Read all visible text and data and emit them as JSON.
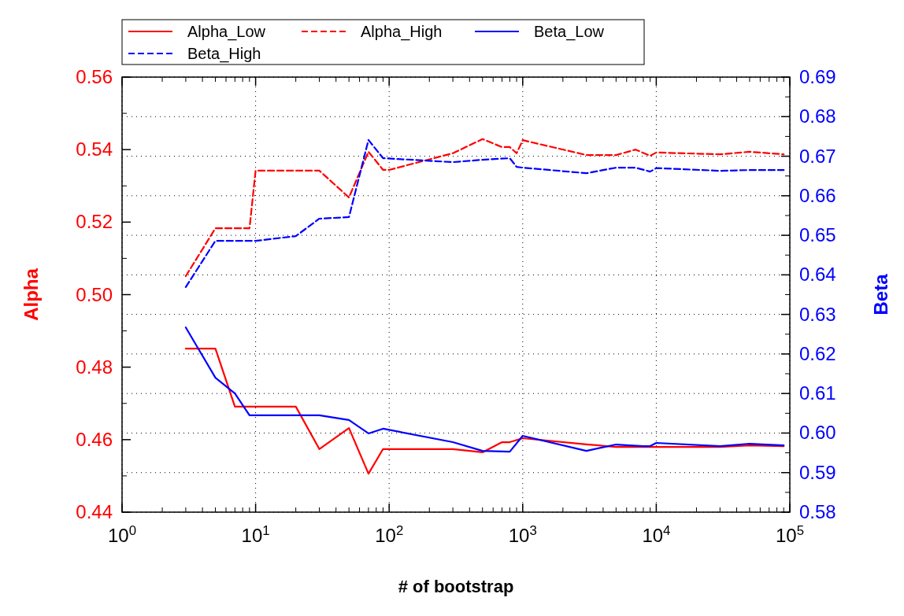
{
  "chart_data": {
    "type": "line",
    "xlabel": "# of bootstrap",
    "ylabel": "Alpha",
    "y2label": "Beta",
    "log": "x",
    "grid": true,
    "legend": "top left",
    "xlim": [
      1,
      100000
    ],
    "xticks": [
      {
        "value": 1,
        "label": "10$^{0}$"
      },
      {
        "value": 10,
        "label": "10$^{1}$"
      },
      {
        "value": 100,
        "label": "10$^{2}$"
      },
      {
        "value": 1000,
        "label": "10$^{3}$"
      },
      {
        "value": 10000,
        "label": "10$^{4}$"
      },
      {
        "value": 100000,
        "label": "10$^{5}$"
      }
    ],
    "ylim": [
      0.44,
      0.56
    ],
    "yticks": [
      {
        "value": 0.44,
        "label": "0.44"
      },
      {
        "value": 0.46,
        "label": "0.46"
      },
      {
        "value": 0.48,
        "label": "0.48"
      },
      {
        "value": 0.5,
        "label": "0.50"
      },
      {
        "value": 0.52,
        "label": "0.52"
      },
      {
        "value": 0.54,
        "label": "0.54"
      },
      {
        "value": 0.56,
        "label": "0.56"
      }
    ],
    "y2lim": [
      0.58,
      0.69
    ],
    "y2ticks": [
      0.58,
      0.59,
      {
        "value": 0.6,
        "label": "0.60"
      },
      0.61,
      0.62,
      0.63,
      0.64,
      0.65,
      0.66,
      0.67,
      0.68,
      0.69
    ],
    "series": [
      {
        "name": "Alpha_Low",
        "color": "#ff0000",
        "line_style": "solid",
        "x": [
          3,
          5,
          7,
          20,
          30,
          50,
          70,
          90,
          300,
          500,
          700,
          800,
          1000,
          3000,
          5000,
          10000,
          30000,
          50000,
          90000
        ],
        "values": [
          0.4851,
          0.4851,
          0.4691,
          0.4691,
          0.4574,
          0.4632,
          0.4506,
          0.4574,
          0.4574,
          0.4565,
          0.4593,
          0.4593,
          0.4604,
          0.4587,
          0.458,
          0.458,
          0.458,
          0.4584,
          0.4582
        ]
      },
      {
        "name": "Alpha_High",
        "color": "#ff0000",
        "line_style": "dashed",
        "x": [
          3,
          5,
          9,
          10,
          30,
          50,
          70,
          90,
          100,
          300,
          500,
          700,
          800,
          900,
          1000,
          3000,
          5000,
          7000,
          9000,
          10000,
          30000,
          50000,
          90000
        ],
        "values": [
          0.5051,
          0.5183,
          0.5183,
          0.5342,
          0.5342,
          0.5268,
          0.5394,
          0.5344,
          0.5344,
          0.539,
          0.5429,
          0.5407,
          0.5407,
          0.539,
          0.5426,
          0.5385,
          0.5385,
          0.54,
          0.5383,
          0.5392,
          0.5387,
          0.5394,
          0.5387
        ]
      },
      {
        "name": "Beta_Low",
        "color": "#0000ff",
        "line_style": "solid",
        "axis": "y2",
        "x": [
          3,
          5,
          7,
          9,
          20,
          30,
          50,
          70,
          90,
          300,
          500,
          800,
          1000,
          3000,
          5000,
          8000,
          9000,
          10000,
          30000,
          50000,
          90000
        ],
        "values": [
          0.6267,
          0.614,
          0.61,
          0.6045,
          0.6045,
          0.6045,
          0.6033,
          0.5999,
          0.6011,
          0.5977,
          0.5955,
          0.5953,
          0.5993,
          0.5955,
          0.5971,
          0.5967,
          0.5967,
          0.5975,
          0.5967,
          0.5973,
          0.5969
        ]
      },
      {
        "name": "Beta_High",
        "color": "#0000ff",
        "line_style": "dashed",
        "axis": "y2",
        "x": [
          3,
          5,
          10,
          20,
          30,
          50,
          70,
          90,
          300,
          500,
          800,
          900,
          1000,
          3000,
          5000,
          7000,
          9000,
          10000,
          30000,
          50000,
          90000
        ],
        "values": [
          0.6369,
          0.6486,
          0.6486,
          0.6498,
          0.6542,
          0.6546,
          0.6741,
          0.6695,
          0.6685,
          0.6691,
          0.6695,
          0.6673,
          0.6671,
          0.6657,
          0.6671,
          0.6671,
          0.6661,
          0.667,
          0.6663,
          0.6665,
          0.6665
        ]
      }
    ]
  }
}
